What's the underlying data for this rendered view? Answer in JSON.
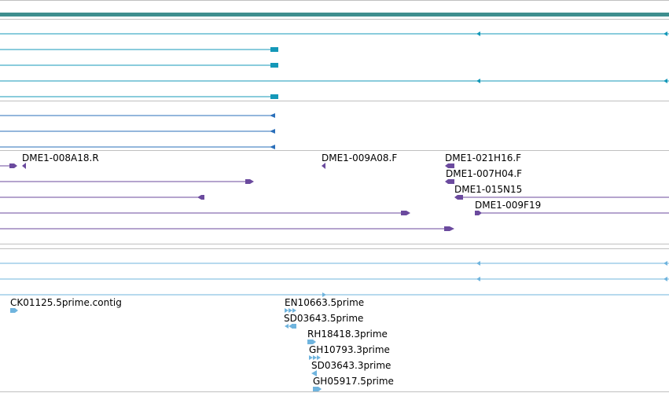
{
  "colors": {
    "background": "#ffffff",
    "divider": "#c0c0c0",
    "ruler": "#3e8e8e",
    "teal": "#1498b8",
    "blue": "#2a6fba",
    "purple": "#6b4a9e",
    "light_blue": "#6fb4de"
  },
  "tracks": [
    {
      "name": "teal-transcript-track",
      "color_key": "teal"
    },
    {
      "name": "blue-transcript-track",
      "color_key": "blue"
    },
    {
      "name": "purple-bac-end-track",
      "color_key": "purple"
    },
    {
      "name": "light-blue-est-track",
      "color_key": "light_blue"
    }
  ],
  "labels": {
    "bac_ends": [
      "DME1-008A18.R",
      "DME1-009A08.F",
      "DME1-021H16.F",
      "DME1-007H04.F",
      "DME1-015N15",
      "DME1-009F19"
    ],
    "ests": [
      "CK01125.5prime.contig",
      "EN10663.5prime",
      "SD03643.5prime",
      "RH18418.3prime",
      "GH10793.3prime",
      "SD03643.3prime",
      "GH05917.5prime"
    ]
  }
}
